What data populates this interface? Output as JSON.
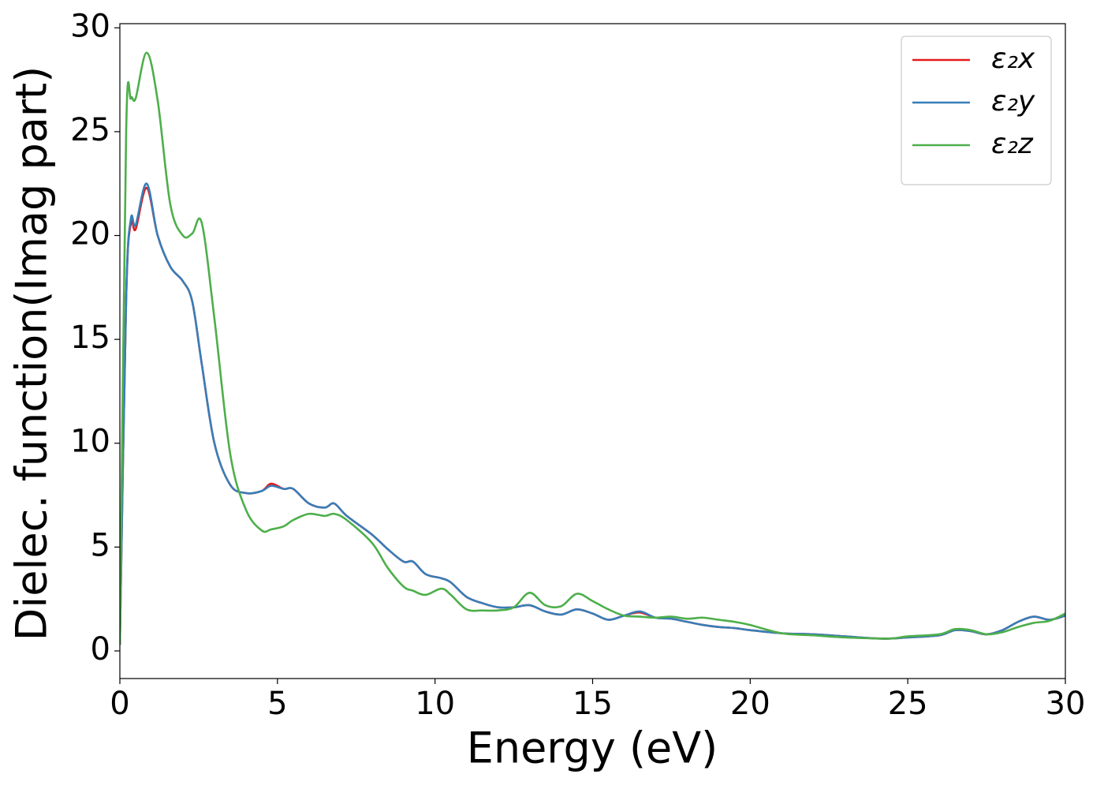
{
  "chart_data": {
    "type": "line",
    "xlabel": "Energy (eV)",
    "ylabel": "Dielec. function(Imag part)",
    "x": [
      0,
      0.2,
      0.35,
      0.5,
      0.85,
      1.2,
      1.6,
      2.0,
      2.3,
      2.6,
      3.0,
      3.5,
      4.0,
      4.5,
      4.8,
      5.2,
      5.5,
      6.0,
      6.5,
      6.8,
      7.2,
      8.0,
      8.5,
      9.0,
      9.3,
      9.7,
      10.2,
      10.5,
      11.0,
      11.5,
      12.0,
      12.5,
      13.0,
      13.5,
      14.0,
      14.5,
      15.0,
      15.5,
      16.0,
      16.5,
      17.0,
      17.5,
      18.0,
      18.5,
      19.0,
      19.5,
      20.0,
      21.0,
      22.0,
      23.0,
      24.0,
      24.5,
      25.0,
      26.0,
      26.5,
      27.0,
      27.5,
      28.0,
      28.5,
      29.0,
      29.5,
      30.0
    ],
    "series": [
      {
        "name": "ε₂x",
        "color": "#e41a1c",
        "values": [
          0.3,
          17,
          20.6,
          20.3,
          22.3,
          20.0,
          18.5,
          17.8,
          16.8,
          13.8,
          10.0,
          8.0,
          7.6,
          7.7,
          8.05,
          7.8,
          7.8,
          7.1,
          6.9,
          7.1,
          6.5,
          5.6,
          4.9,
          4.3,
          4.3,
          3.7,
          3.5,
          3.3,
          2.6,
          2.3,
          2.1,
          2.1,
          2.2,
          1.9,
          1.75,
          2.0,
          1.8,
          1.5,
          1.7,
          1.85,
          1.6,
          1.55,
          1.4,
          1.25,
          1.15,
          1.1,
          1.0,
          0.85,
          0.8,
          0.7,
          0.6,
          0.6,
          0.65,
          0.75,
          1.0,
          0.95,
          0.8,
          1.0,
          1.4,
          1.65,
          1.5,
          1.7
        ]
      },
      {
        "name": "ε₂y",
        "color": "#377eb8",
        "values": [
          0.3,
          17,
          20.8,
          20.5,
          22.5,
          20.0,
          18.5,
          17.8,
          16.8,
          13.8,
          10.0,
          8.0,
          7.6,
          7.7,
          7.95,
          7.8,
          7.8,
          7.1,
          6.9,
          7.1,
          6.5,
          5.6,
          4.9,
          4.3,
          4.3,
          3.7,
          3.5,
          3.3,
          2.6,
          2.3,
          2.1,
          2.1,
          2.2,
          1.9,
          1.75,
          2.0,
          1.8,
          1.5,
          1.7,
          1.9,
          1.6,
          1.55,
          1.4,
          1.25,
          1.15,
          1.1,
          1.0,
          0.85,
          0.8,
          0.7,
          0.6,
          0.6,
          0.65,
          0.75,
          1.0,
          0.95,
          0.8,
          1.0,
          1.4,
          1.65,
          1.5,
          1.7
        ]
      },
      {
        "name": "ε₂z",
        "color": "#4daf4a",
        "values": [
          0.3,
          25,
          26.6,
          26.6,
          28.8,
          26.5,
          21.5,
          20.0,
          20.1,
          20.6,
          16.0,
          9.5,
          6.8,
          5.8,
          5.85,
          6.0,
          6.3,
          6.6,
          6.5,
          6.6,
          6.3,
          5.2,
          4.0,
          3.1,
          2.9,
          2.7,
          3.0,
          2.7,
          2.0,
          1.95,
          1.95,
          2.1,
          2.8,
          2.2,
          2.15,
          2.75,
          2.4,
          2.0,
          1.7,
          1.65,
          1.6,
          1.65,
          1.55,
          1.6,
          1.5,
          1.4,
          1.25,
          0.85,
          0.75,
          0.65,
          0.6,
          0.6,
          0.7,
          0.8,
          1.05,
          1.0,
          0.8,
          0.9,
          1.15,
          1.35,
          1.45,
          1.8
        ]
      }
    ],
    "xlim": [
      0,
      30
    ],
    "xticks": [
      0,
      5,
      10,
      15,
      20,
      25,
      30
    ],
    "ylim": [
      -1.33,
      30.2
    ],
    "yticks": [
      0,
      5,
      10,
      15,
      20,
      25,
      30
    ],
    "grid": false,
    "legend": "upper right"
  }
}
